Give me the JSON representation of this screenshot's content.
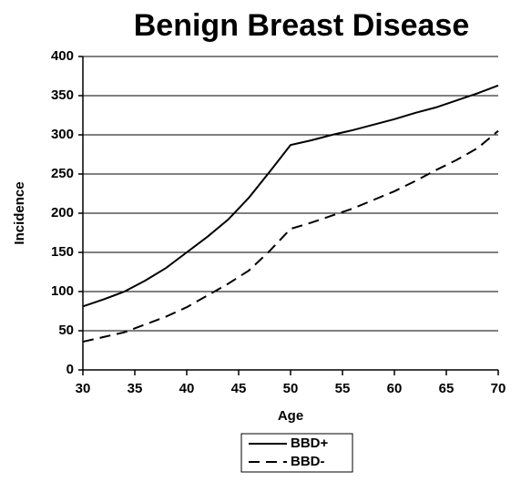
{
  "chart_data": {
    "type": "line",
    "title": "Benign Breast Disease",
    "x_label": "Age",
    "y_label": "Incidence",
    "x": [
      30,
      32,
      34,
      36,
      38,
      40,
      42,
      44,
      46,
      48,
      50,
      52,
      54,
      56,
      58,
      60,
      62,
      64,
      66,
      68,
      70
    ],
    "series": [
      {
        "name": "BBD+",
        "color": "#000000",
        "line_style": "solid",
        "values": [
          81,
          90,
          100,
          114,
          130,
          150,
          170,
          192,
          220,
          253,
          287,
          293,
          300,
          306,
          313,
          320,
          328,
          335,
          344,
          353,
          363
        ]
      },
      {
        "name": "BBD-",
        "color": "#000000",
        "line_style": "dashed",
        "values": [
          36,
          42,
          48,
          58,
          68,
          80,
          95,
          110,
          127,
          152,
          180,
          188,
          197,
          206,
          217,
          228,
          241,
          255,
          268,
          283,
          305
        ]
      }
    ],
    "xlim": [
      30,
      70
    ],
    "xticks": [
      30,
      35,
      40,
      45,
      50,
      55,
      60,
      65,
      70
    ],
    "ylim": [
      0,
      400
    ],
    "yticks": [
      0,
      50,
      100,
      150,
      200,
      250,
      300,
      350,
      400
    ],
    "grid": true,
    "legend": "bottom"
  }
}
